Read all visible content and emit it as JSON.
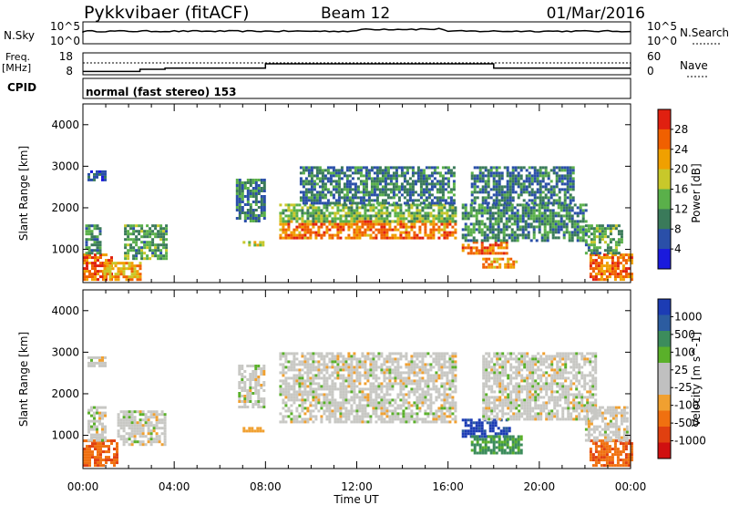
{
  "header": {
    "station": "Pykkvibaer (fitACF)",
    "beam": "Beam 12",
    "date": "01/Mar/2016"
  },
  "nsky_panel": {
    "left_label": "N.Sky",
    "left_ticks": [
      "10^5",
      "10^0"
    ],
    "right_label": "N.Search",
    "right_ticks": [
      "10^5",
      "10^0"
    ]
  },
  "freq_panel": {
    "left_label_top": "Freq.",
    "left_label_bottom": "[MHz]",
    "left_ticks": [
      "18",
      "8"
    ],
    "right_label": "Nave",
    "right_ticks": [
      "60",
      "0"
    ],
    "freq_steps": [
      {
        "t0": 0,
        "t1": 2.5,
        "mhz": 9.5
      },
      {
        "t0": 2.5,
        "t1": 3.6,
        "mhz": 10.5
      },
      {
        "t0": 3.6,
        "t1": 8.0,
        "mhz": 11.0
      },
      {
        "t0": 8.0,
        "t1": 18.0,
        "mhz": 13.0
      },
      {
        "t0": 18.0,
        "t1": 24.0,
        "mhz": 11.0
      }
    ]
  },
  "cpid": {
    "label": "CPID",
    "text": "normal (fast stereo) 153"
  },
  "colors": {
    "power_scale": [
      "#1a1adc",
      "#2a4fa8",
      "#3a7a5a",
      "#5ab04a",
      "#c8c82a",
      "#f0a000",
      "#f06000",
      "#e02010"
    ],
    "velocity_scale": [
      "#1c3cb4",
      "#2c5ca0",
      "#3c8c5c",
      "#5ab02a",
      "#c0c0c0",
      "#c0c0c0",
      "#f0a030",
      "#f07010",
      "#e04010",
      "#d01010"
    ],
    "ground_scatter": "#c8c8c4"
  },
  "chart_data": [
    {
      "type": "heatmap",
      "name": "power",
      "ylabel": "Slant Range [km]",
      "y_ticks": [
        "4000",
        "3000",
        "2000",
        "1000"
      ],
      "ylim": [
        200,
        4500
      ],
      "xlim": [
        0,
        24
      ],
      "colorbar_label": "Power [dB]",
      "colorbar_ticks": [
        "28",
        "24",
        "20",
        "16",
        "12",
        "8",
        "4"
      ],
      "clim": [
        0,
        32
      ],
      "regions": [
        {
          "t0": 0.0,
          "t1": 1.2,
          "r0": 300,
          "r1": 900,
          "db": 28
        },
        {
          "t0": 0.1,
          "t1": 0.8,
          "r0": 900,
          "r1": 1600,
          "db": 10
        },
        {
          "t0": 0.9,
          "t1": 2.5,
          "r0": 300,
          "r1": 700,
          "db": 22
        },
        {
          "t0": 1.8,
          "t1": 3.6,
          "r0": 800,
          "r1": 1600,
          "db": 12
        },
        {
          "t0": 0.2,
          "t1": 1.0,
          "r0": 2700,
          "r1": 2900,
          "db": 6
        },
        {
          "t0": 6.7,
          "t1": 7.9,
          "r0": 1700,
          "r1": 2700,
          "db": 8
        },
        {
          "t0": 7.0,
          "t1": 7.9,
          "r0": 1100,
          "r1": 1200,
          "db": 18
        },
        {
          "t0": 8.6,
          "t1": 16.3,
          "r0": 1300,
          "r1": 1700,
          "db": 26
        },
        {
          "t0": 8.6,
          "t1": 16.3,
          "r0": 1700,
          "r1": 2100,
          "db": 14
        },
        {
          "t0": 9.5,
          "t1": 16.3,
          "r0": 2100,
          "r1": 3000,
          "db": 8
        },
        {
          "t0": 16.6,
          "t1": 18.6,
          "r0": 900,
          "r1": 1200,
          "db": 26
        },
        {
          "t0": 17.5,
          "t1": 19.0,
          "r0": 600,
          "r1": 800,
          "db": 24
        },
        {
          "t0": 16.6,
          "t1": 22.0,
          "r0": 1200,
          "r1": 2100,
          "db": 10
        },
        {
          "t0": 17.0,
          "t1": 21.5,
          "r0": 2100,
          "r1": 3000,
          "db": 8
        },
        {
          "t0": 22.2,
          "t1": 24.0,
          "r0": 300,
          "r1": 900,
          "db": 26
        },
        {
          "t0": 22.0,
          "t1": 23.6,
          "r0": 900,
          "r1": 1600,
          "db": 12
        }
      ]
    },
    {
      "type": "heatmap",
      "name": "velocity",
      "ylabel": "Slant Range [km]",
      "y_ticks": [
        "4000",
        "3000",
        "2000",
        "1000"
      ],
      "ylim": [
        200,
        4500
      ],
      "xlim": [
        0,
        24
      ],
      "xlabel": "Time UT",
      "x_ticks": [
        "00:00",
        "04:00",
        "08:00",
        "12:00",
        "16:00",
        "20:00",
        "00:00"
      ],
      "colorbar_label": "Velocity [m s^-1]",
      "colorbar_ticks": [
        "1000",
        "500",
        "100",
        "25",
        "-25",
        "-100",
        "-500",
        "-1000"
      ],
      "clim": [
        -1000,
        1000
      ],
      "regions": [
        {
          "t0": 0.0,
          "t1": 1.5,
          "r0": 300,
          "r1": 900,
          "v": -300
        },
        {
          "t0": 0.2,
          "t1": 1.0,
          "r0": 900,
          "r1": 1700,
          "v": 0
        },
        {
          "t0": 1.5,
          "t1": 3.6,
          "r0": 800,
          "r1": 1600,
          "v": 0
        },
        {
          "t0": 0.2,
          "t1": 1.0,
          "r0": 2700,
          "r1": 2900,
          "v": 0
        },
        {
          "t0": 6.8,
          "t1": 7.9,
          "r0": 1700,
          "r1": 2700,
          "v": 0
        },
        {
          "t0": 7.0,
          "t1": 7.9,
          "r0": 1100,
          "r1": 1200,
          "v": -80
        },
        {
          "t0": 8.6,
          "t1": 16.3,
          "r0": 1300,
          "r1": 3000,
          "v": 0
        },
        {
          "t0": 16.6,
          "t1": 18.7,
          "r0": 1000,
          "r1": 1400,
          "v": 900
        },
        {
          "t0": 17.0,
          "t1": 19.2,
          "r0": 600,
          "r1": 1000,
          "v": 400
        },
        {
          "t0": 17.5,
          "t1": 22.5,
          "r0": 1400,
          "r1": 3000,
          "v": 0
        },
        {
          "t0": 22.2,
          "t1": 24.0,
          "r0": 300,
          "r1": 900,
          "v": -300
        },
        {
          "t0": 22.0,
          "t1": 23.8,
          "r0": 900,
          "r1": 1700,
          "v": 0
        }
      ]
    }
  ]
}
